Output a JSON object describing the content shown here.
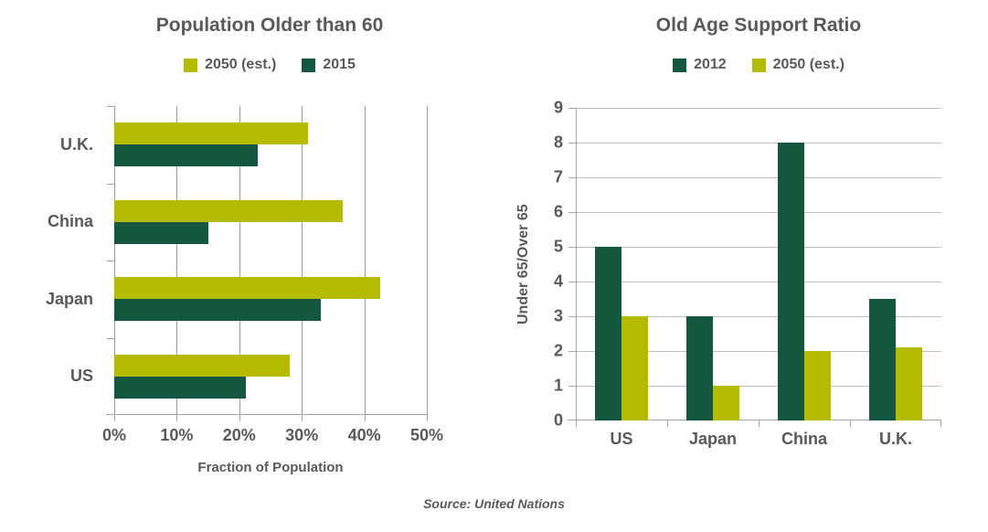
{
  "page": {
    "source_note": "Source: United Nations"
  },
  "theme": {
    "background": "#ffffff",
    "text_color": "#595959",
    "axis_color": "#a6a6a6",
    "grid_color_left": "#9d9d9d",
    "grid_color_right": "#c0c0c0",
    "color_olive": "#b5bc00",
    "color_dark_green": "#15563e"
  },
  "chart_data": [
    {
      "type": "bar",
      "orientation": "horizontal",
      "title": "Population Older than 60",
      "categories": [
        "U.K.",
        "China",
        "Japan",
        "US"
      ],
      "series": [
        {
          "name": "2050 (est.)",
          "color": "#b5bc00",
          "values": [
            31,
            36.5,
            42.5,
            28
          ]
        },
        {
          "name": "2015",
          "color": "#15563e",
          "values": [
            23,
            15,
            33,
            21
          ]
        }
      ],
      "xlabel": "Fraction of Population",
      "x_ticks": [
        "0%",
        "10%",
        "20%",
        "30%",
        "40%",
        "50%"
      ],
      "xlim": [
        0,
        50
      ],
      "grid": "vertical",
      "legend_position": "top"
    },
    {
      "type": "bar",
      "orientation": "vertical",
      "title": "Old Age Support Ratio",
      "categories": [
        "US",
        "Japan",
        "China",
        "U.K."
      ],
      "series": [
        {
          "name": "2012",
          "color": "#15563e",
          "values": [
            5,
            3,
            8,
            3.5
          ]
        },
        {
          "name": "2050 (est.)",
          "color": "#b5bc00",
          "values": [
            3,
            1,
            2,
            2.1
          ]
        }
      ],
      "ylabel": "Under 65/Over 65",
      "y_ticks": [
        0,
        1,
        2,
        3,
        4,
        5,
        6,
        7,
        8,
        9
      ],
      "ylim": [
        0,
        9
      ],
      "grid": "horizontal",
      "legend_position": "top"
    }
  ]
}
